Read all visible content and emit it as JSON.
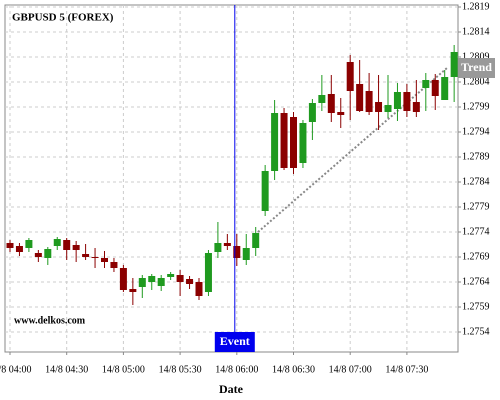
{
  "chart_data": {
    "type": "candlestick",
    "title": "GBPUSD 5 (FOREX)",
    "watermark": "www.delkos.com",
    "x_label": "Date",
    "categories": [
      "14/8 04:00",
      null,
      null,
      null,
      null,
      null,
      "14/8 04:30",
      null,
      null,
      null,
      null,
      null,
      "14/8 05:00",
      null,
      null,
      null,
      null,
      null,
      "14/8 05:30",
      null,
      null,
      null,
      null,
      null,
      "14/8 06:00",
      null,
      null,
      null,
      null,
      null,
      "14/8 06:30",
      null,
      null,
      null,
      null,
      null,
      "14/8 07:00",
      null,
      null,
      null,
      null,
      null,
      "14/8 07:30",
      null,
      null,
      null,
      null,
      null
    ],
    "open": [
      1.27718,
      1.27712,
      1.27708,
      1.27698,
      1.27688,
      1.27712,
      1.27724,
      1.27714,
      1.27696,
      1.2769,
      1.27688,
      1.2768,
      1.27668,
      1.27626,
      1.2763,
      1.2764,
      1.27632,
      1.2765,
      1.27654,
      1.27646,
      1.2764,
      1.2762,
      1.277,
      1.27718,
      1.27712,
      1.27684,
      1.27708,
      1.27782,
      1.27862,
      1.27978,
      1.2797,
      1.27878,
      1.2796,
      1.27998,
      1.28016,
      1.2798,
      1.2808,
      1.28036,
      1.28022,
      1.28,
      1.2798,
      1.27986,
      1.2802,
      1.28,
      1.28028,
      1.28044,
      1.28004,
      1.2805
    ],
    "high": [
      1.27724,
      1.27718,
      1.27728,
      1.27704,
      1.2771,
      1.2773,
      1.27728,
      1.27722,
      1.27716,
      1.27708,
      1.27702,
      1.27688,
      1.27674,
      1.27648,
      1.27654,
      1.27656,
      1.27654,
      1.2766,
      1.27664,
      1.27652,
      1.27648,
      1.27704,
      1.2776,
      1.27736,
      1.27736,
      1.27736,
      1.2775,
      1.27874,
      1.28004,
      1.27988,
      1.2798,
      1.27964,
      1.28006,
      1.28054,
      1.28054,
      1.28008,
      1.28094,
      1.28084,
      1.28058,
      1.28054,
      1.28054,
      1.28038,
      1.28036,
      1.28044,
      1.28058,
      1.28056,
      1.28064,
      1.28114
    ],
    "low": [
      1.277,
      1.27692,
      1.277,
      1.2768,
      1.27674,
      1.27704,
      1.27684,
      1.2768,
      1.27684,
      1.27668,
      1.27668,
      1.2766,
      1.2762,
      1.27594,
      1.27608,
      1.27624,
      1.27622,
      1.27644,
      1.27612,
      1.27626,
      1.27604,
      1.27612,
      1.27688,
      1.27704,
      1.27672,
      1.27674,
      1.27692,
      1.27772,
      1.27844,
      1.27864,
      1.27856,
      1.27868,
      1.27924,
      1.27982,
      1.2796,
      1.27948,
      1.27964,
      1.2798,
      1.27974,
      1.27944,
      1.27968,
      1.27962,
      1.2797,
      1.2797,
      1.27982,
      1.27984,
      1.28004,
      1.28
    ],
    "close": [
      1.27708,
      1.277,
      1.27724,
      1.2769,
      1.27706,
      1.27726,
      1.27704,
      1.27704,
      1.2769,
      1.27688,
      1.2768,
      1.27668,
      1.27624,
      1.2762,
      1.27648,
      1.27652,
      1.27648,
      1.27656,
      1.2764,
      1.27636,
      1.27612,
      1.27698,
      1.27718,
      1.27712,
      1.27688,
      1.27708,
      1.27738,
      1.27862,
      1.27978,
      1.27868,
      1.27868,
      1.27958,
      1.27998,
      1.28014,
      1.27978,
      1.27974,
      1.28022,
      1.27982,
      1.2798,
      1.2798,
      1.27994,
      1.2802,
      1.27982,
      1.2798,
      1.28044,
      1.28012,
      1.2805,
      1.281
    ],
    "up_color": "#1f9a1f",
    "down_color": "#8b0000",
    "ylim": [
      1.275,
      1.28194
    ],
    "yticks": [
      1.2754,
      1.2759,
      1.2764,
      1.2769,
      1.2774,
      1.2779,
      1.2784,
      1.2789,
      1.2794,
      1.2799,
      1.2804,
      1.2809,
      1.2814,
      1.2819
    ],
    "grid": true,
    "event": {
      "label": "Event",
      "x": "14/8 06:00",
      "color": "#0000ee"
    },
    "trend": {
      "label": "Trend",
      "value": 1.28068,
      "color": "#999999"
    }
  }
}
